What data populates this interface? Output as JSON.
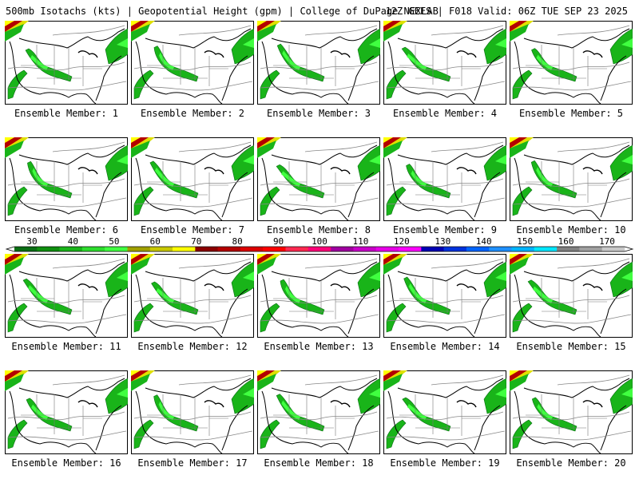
{
  "header": {
    "left": "500mb Isotachs (kts) | Geopotential Height (gpm) | College of DuPage NEXLAB",
    "right": "12Z GEFS | F018 Valid: 06Z TUE SEP 23 2025"
  },
  "panels": [
    {
      "label": "Ensemble Member: 1"
    },
    {
      "label": "Ensemble Member: 2"
    },
    {
      "label": "Ensemble Member: 3"
    },
    {
      "label": "Ensemble Member: 4"
    },
    {
      "label": "Ensemble Member: 5"
    },
    {
      "label": "Ensemble Member: 6"
    },
    {
      "label": "Ensemble Member: 7"
    },
    {
      "label": "Ensemble Member: 8"
    },
    {
      "label": "Ensemble Member: 9"
    },
    {
      "label": "Ensemble Member: 10"
    },
    {
      "label": "Ensemble Member: 11"
    },
    {
      "label": "Ensemble Member: 12"
    },
    {
      "label": "Ensemble Member: 13"
    },
    {
      "label": "Ensemble Member: 14"
    },
    {
      "label": "Ensemble Member: 15"
    },
    {
      "label": "Ensemble Member: 16"
    },
    {
      "label": "Ensemble Member: 17"
    },
    {
      "label": "Ensemble Member: 18"
    },
    {
      "label": "Ensemble Member: 19"
    },
    {
      "label": "Ensemble Member: 20"
    }
  ],
  "colorbar": {
    "ticks": [
      30,
      40,
      50,
      60,
      70,
      80,
      90,
      100,
      110,
      120,
      130,
      140,
      150,
      160,
      170
    ],
    "colors": [
      "#0a6e14",
      "#0f8f0f",
      "#19b419",
      "#2ddc2d",
      "#40ff40",
      "#a0a000",
      "#c8c800",
      "#ffff00",
      "#8b0000",
      "#b40000",
      "#dc0000",
      "#ff0000",
      "#ff2850",
      "#ff0078",
      "#a000a0",
      "#c800c8",
      "#e600e6",
      "#ff00ff",
      "#0000b4",
      "#0032dc",
      "#0064ff",
      "#1e90ff",
      "#00b4ff",
      "#00e6ff",
      "#808080",
      "#a0a0a0",
      "#c8c8c8"
    ]
  }
}
